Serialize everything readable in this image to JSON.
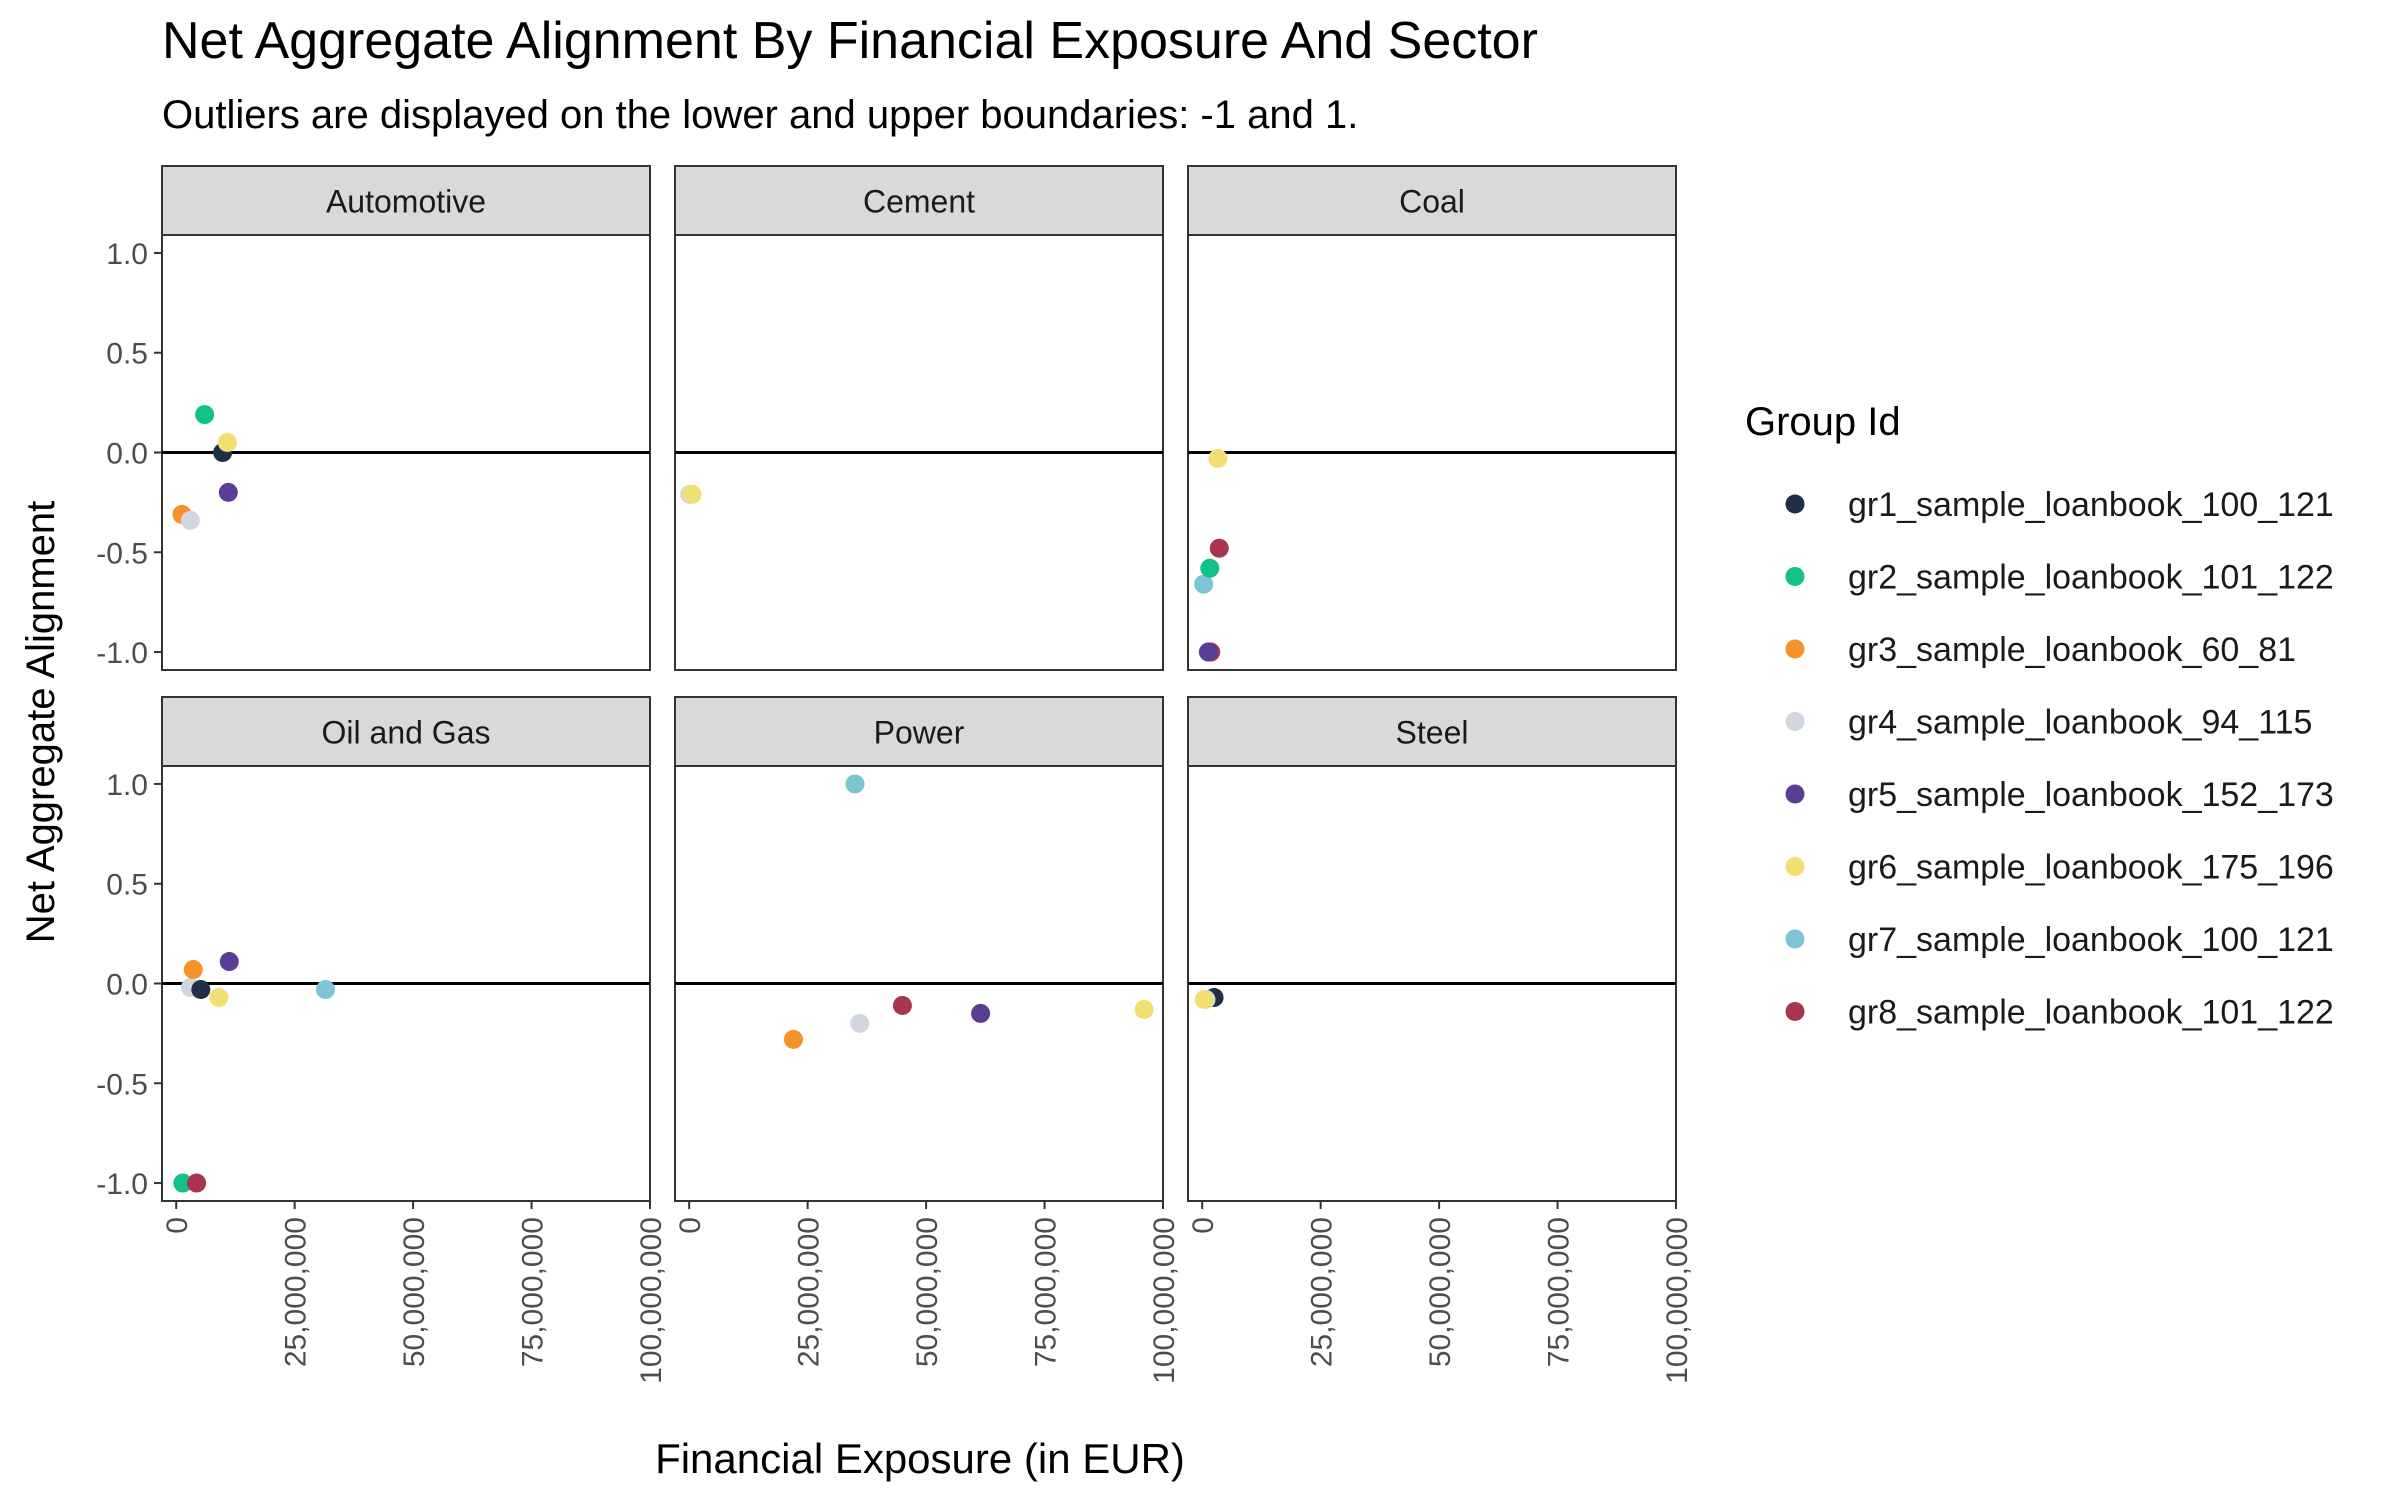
{
  "chart_data": {
    "type": "scatter",
    "title": "Net Aggregate Alignment By Financial Exposure And Sector",
    "subtitle": "Outliers are displayed on the lower and upper boundaries: -1 and 1.",
    "xlabel": "Financial Exposure (in EUR)",
    "ylabel": "Net Aggregate Alignment",
    "xlim": [
      -3000000,
      100000000
    ],
    "ylim": [
      -1.09,
      1.09
    ],
    "x_ticks": [
      0,
      25000000,
      50000000,
      75000000,
      100000000
    ],
    "x_tick_labels": [
      "0",
      "25,000,000",
      "50,000,000",
      "75,000,000",
      "100,000,000"
    ],
    "y_ticks": [
      1.0,
      0.5,
      0.0,
      -0.5,
      -1.0
    ],
    "y_tick_labels": [
      "1.0",
      "0.5",
      "0.0",
      "-0.5",
      "-1.0"
    ],
    "reference_line_y": 0,
    "grid": false,
    "legend": {
      "title": "Group Id",
      "position": "right",
      "entries": [
        {
          "name": "gr1_sample_loanbook_100_121",
          "color": "#1f2f4a"
        },
        {
          "name": "gr2_sample_loanbook_101_122",
          "color": "#12c08a"
        },
        {
          "name": "gr3_sample_loanbook_60_81",
          "color": "#f7922b"
        },
        {
          "name": "gr4_sample_loanbook_94_115",
          "color": "#d2d6df"
        },
        {
          "name": "gr5_sample_loanbook_152_173",
          "color": "#5b3d96"
        },
        {
          "name": "gr6_sample_loanbook_175_196",
          "color": "#f2df74"
        },
        {
          "name": "gr7_sample_loanbook_100_121",
          "color": "#7cc4d6"
        },
        {
          "name": "gr8_sample_loanbook_101_122",
          "color": "#a8354f"
        }
      ]
    },
    "panels": [
      {
        "sector": "Automotive",
        "points": [
          {
            "group": 3,
            "x": 1200000,
            "y": -0.31
          },
          {
            "group": 4,
            "x": 3000000,
            "y": -0.34
          },
          {
            "group": 2,
            "x": 6000000,
            "y": 0.19
          },
          {
            "group": 1,
            "x": 9800000,
            "y": 0.0
          },
          {
            "group": 6,
            "x": 10800000,
            "y": 0.05
          },
          {
            "group": 5,
            "x": 11000000,
            "y": -0.2
          }
        ]
      },
      {
        "sector": "Cement",
        "points": [
          {
            "group": 4,
            "x": 100000,
            "y": -0.21
          },
          {
            "group": 6,
            "x": 600000,
            "y": -0.21
          }
        ]
      },
      {
        "sector": "Coal",
        "points": [
          {
            "group": 7,
            "x": 300000,
            "y": -0.66
          },
          {
            "group": 2,
            "x": 1600000,
            "y": -0.58
          },
          {
            "group": 8,
            "x": 1800000,
            "y": -1.0
          },
          {
            "group": 5,
            "x": 1300000,
            "y": -1.0
          },
          {
            "group": 8,
            "x": 3600000,
            "y": -0.48
          },
          {
            "group": 6,
            "x": 3300000,
            "y": -0.03
          }
        ]
      },
      {
        "sector": "Oil and Gas",
        "points": [
          {
            "group": 2,
            "x": 1400000,
            "y": -1.0
          },
          {
            "group": 8,
            "x": 4300000,
            "y": -1.0
          },
          {
            "group": 4,
            "x": 3000000,
            "y": -0.02
          },
          {
            "group": 1,
            "x": 5200000,
            "y": -0.03
          },
          {
            "group": 3,
            "x": 3600000,
            "y": 0.07
          },
          {
            "group": 6,
            "x": 9000000,
            "y": -0.07
          },
          {
            "group": 5,
            "x": 11200000,
            "y": 0.11
          },
          {
            "group": 7,
            "x": 31500000,
            "y": -0.03
          }
        ]
      },
      {
        "sector": "Power",
        "points": [
          {
            "group": 7,
            "x": 35000000,
            "y": 1.0
          },
          {
            "group": 3,
            "x": 22000000,
            "y": -0.28
          },
          {
            "group": 4,
            "x": 36000000,
            "y": -0.2
          },
          {
            "group": 8,
            "x": 45000000,
            "y": -0.11
          },
          {
            "group": 5,
            "x": 61500000,
            "y": -0.15
          },
          {
            "group": 6,
            "x": 96000000,
            "y": -0.13
          }
        ]
      },
      {
        "sector": "Steel",
        "points": [
          {
            "group": 1,
            "x": 2500000,
            "y": -0.07
          },
          {
            "group": 4,
            "x": 800000,
            "y": -0.08
          },
          {
            "group": 6,
            "x": 400000,
            "y": -0.08
          }
        ]
      }
    ]
  }
}
